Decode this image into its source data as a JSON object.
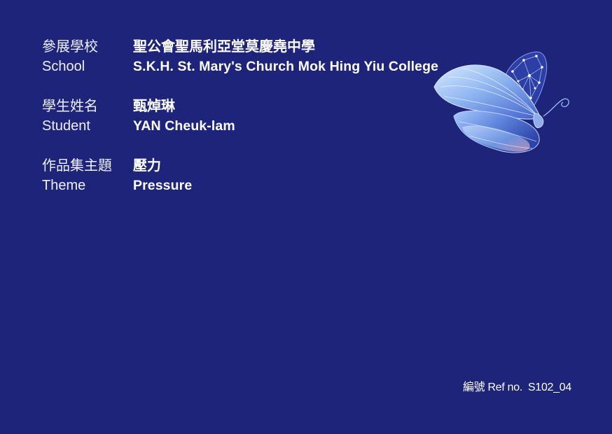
{
  "school": {
    "label_zh": "參展學校",
    "label_en": "School",
    "value_zh": "聖公會聖馬利亞堂莫慶堯中學",
    "value_en": "S.K.H. St. Mary's Church Mok Hing Yiu College"
  },
  "student": {
    "label_zh": "學生姓名",
    "label_en": "Student",
    "value_zh": "甄焯琳",
    "value_en": "YAN Cheuk-lam"
  },
  "theme": {
    "label_zh": "作品集主題",
    "label_en": "Theme",
    "value_zh": "壓力",
    "value_en": "Pressure"
  },
  "reference": {
    "label": "編號 Ref no.",
    "code": "S102_04"
  },
  "colors": {
    "background": "#1d2479",
    "text": "#ffffff",
    "butterfly_light": "#b9d8ff",
    "butterfly_mid": "#6f9ee8",
    "butterfly_dark": "#3a56c8"
  },
  "illustration": {
    "icon": "butterfly-icon"
  }
}
